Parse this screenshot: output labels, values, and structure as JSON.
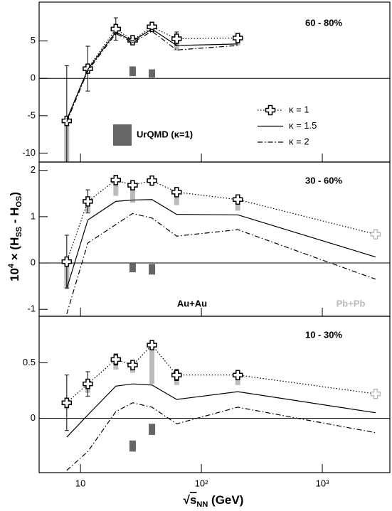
{
  "chart_data": [
    {
      "type": "line",
      "label": "60 - 80%",
      "x": [
        7.7,
        11.5,
        19.6,
        27,
        39,
        62.4,
        200
      ],
      "ylim": [
        -11.2,
        10.2
      ],
      "yticks": [
        -10,
        -5,
        0,
        5
      ],
      "series": [
        {
          "name": "κ = 1",
          "color": "#000000",
          "style": "dotted",
          "marker": true,
          "values": [
            -5.7,
            1.3,
            6.6,
            5.1,
            6.9,
            5.3,
            5.4
          ],
          "errors": [
            7.4,
            3.0,
            1.5,
            0.6,
            0.5,
            0.9,
            0.5
          ],
          "sys_low": [
            -11.2,
            0.8,
            5.8,
            4.6,
            6.2,
            3.7,
            4.4
          ],
          "marker_colors": [
            "#000000",
            "#000000",
            "#000000",
            "#000000",
            "#000000",
            "#000000",
            "#000000"
          ]
        },
        {
          "name": "κ = 1.5",
          "color": "#000000",
          "style": "solid",
          "values": [
            -5.5,
            1.2,
            6.2,
            5.0,
            6.6,
            4.4,
            4.6
          ]
        },
        {
          "name": "κ = 2",
          "color": "#000000",
          "style": "dashdot",
          "values": [
            -5.8,
            1.0,
            6.0,
            4.8,
            6.3,
            3.8,
            4.4
          ]
        }
      ],
      "urqmd": {
        "name": "UrQMD (κ=1)",
        "color": "#666666",
        "x": [
          27,
          39
        ],
        "low": [
          0.3,
          0.1
        ],
        "high": [
          1.6,
          1.2
        ]
      }
    },
    {
      "type": "line",
      "label": "30 - 60%",
      "x": [
        7.7,
        11.5,
        19.6,
        27,
        39,
        62.4,
        200,
        2760
      ],
      "ylim": [
        -1.15,
        2.18
      ],
      "yticks": [
        -1,
        0,
        1,
        2
      ],
      "series": [
        {
          "color": "#000000",
          "style": "dotted",
          "marker": true,
          "values": [
            0.03,
            1.33,
            1.79,
            1.68,
            1.78,
            1.53,
            1.37,
            0.62
          ],
          "errors": [
            0.57,
            0.25,
            0.1,
            0.07,
            0.05,
            0.08,
            0.05,
            0.05
          ],
          "sys_low": [
            -0.55,
            1.1,
            1.45,
            1.3,
            1.72,
            1.25,
            1.13,
            null
          ],
          "marker_colors": [
            "#000000",
            "#000000",
            "#000000",
            "#000000",
            "#000000",
            "#000000",
            "#000000",
            "#bbbbbb"
          ]
        },
        {
          "color": "#000000",
          "style": "solid",
          "values": [
            -0.55,
            0.93,
            1.33,
            1.36,
            1.37,
            1.05,
            1.04,
            0.13
          ]
        },
        {
          "color": "#000000",
          "style": "dashdot",
          "values": [
            -1.1,
            0.43,
            0.83,
            1.07,
            0.97,
            0.58,
            0.72,
            -0.35
          ]
        }
      ],
      "urqmd": {
        "color": "#666666",
        "x": [
          27,
          39
        ],
        "low": [
          -0.2,
          -0.25
        ],
        "high": [
          0,
          -0.02
        ]
      },
      "annotations": [
        {
          "text": "Au+Au",
          "color": "#000000"
        },
        {
          "text": "Pb+Pb",
          "color": "#bbbbbb"
        }
      ]
    },
    {
      "type": "line",
      "label": "10 - 30%",
      "x": [
        7.7,
        11.5,
        19.6,
        27,
        39,
        62.4,
        200,
        2760
      ],
      "ylim": [
        -0.49,
        0.92
      ],
      "yticks": [
        0,
        0.5
      ],
      "series": [
        {
          "color": "#000000",
          "style": "dotted",
          "marker": true,
          "values": [
            0.14,
            0.31,
            0.53,
            0.48,
            0.66,
            0.39,
            0.39,
            0.22
          ],
          "errors": [
            0.25,
            0.11,
            0.05,
            0.04,
            0.04,
            0.05,
            0.03,
            0.03
          ],
          "sys_low": [
            0.08,
            0.23,
            0.44,
            0.41,
            0.31,
            0.3,
            0.3,
            null
          ],
          "marker_colors": [
            "#000000",
            "#000000",
            "#000000",
            "#000000",
            "#000000",
            "#000000",
            "#000000",
            "#bbbbbb"
          ]
        },
        {
          "color": "#000000",
          "style": "solid",
          "values": [
            -0.17,
            0.03,
            0.29,
            0.31,
            0.3,
            0.17,
            0.24,
            0.05
          ]
        },
        {
          "color": "#000000",
          "style": "dashdot",
          "values": [
            -0.47,
            -0.3,
            0.06,
            0.14,
            0.1,
            -0.05,
            0.1,
            -0.13
          ]
        }
      ],
      "urqmd": {
        "color": "#666666",
        "x": [
          27,
          39
        ],
        "low": [
          -0.3,
          -0.15
        ],
        "high": [
          -0.2,
          -0.05
        ]
      },
      "xlim": [
        4.55,
        3620
      ],
      "log_x": true,
      "xticks": [
        10,
        {
          "value": 100,
          "label": "10²"
        },
        {
          "value": 1000,
          "label": "10³"
        }
      ],
      "x_label": [
        "√",
        "s",
        "NN",
        " (GeV)"
      ],
      "y_label": [
        "10",
        "4",
        " × (H",
        "SS",
        " - H",
        "OS",
        ")"
      ]
    }
  ]
}
